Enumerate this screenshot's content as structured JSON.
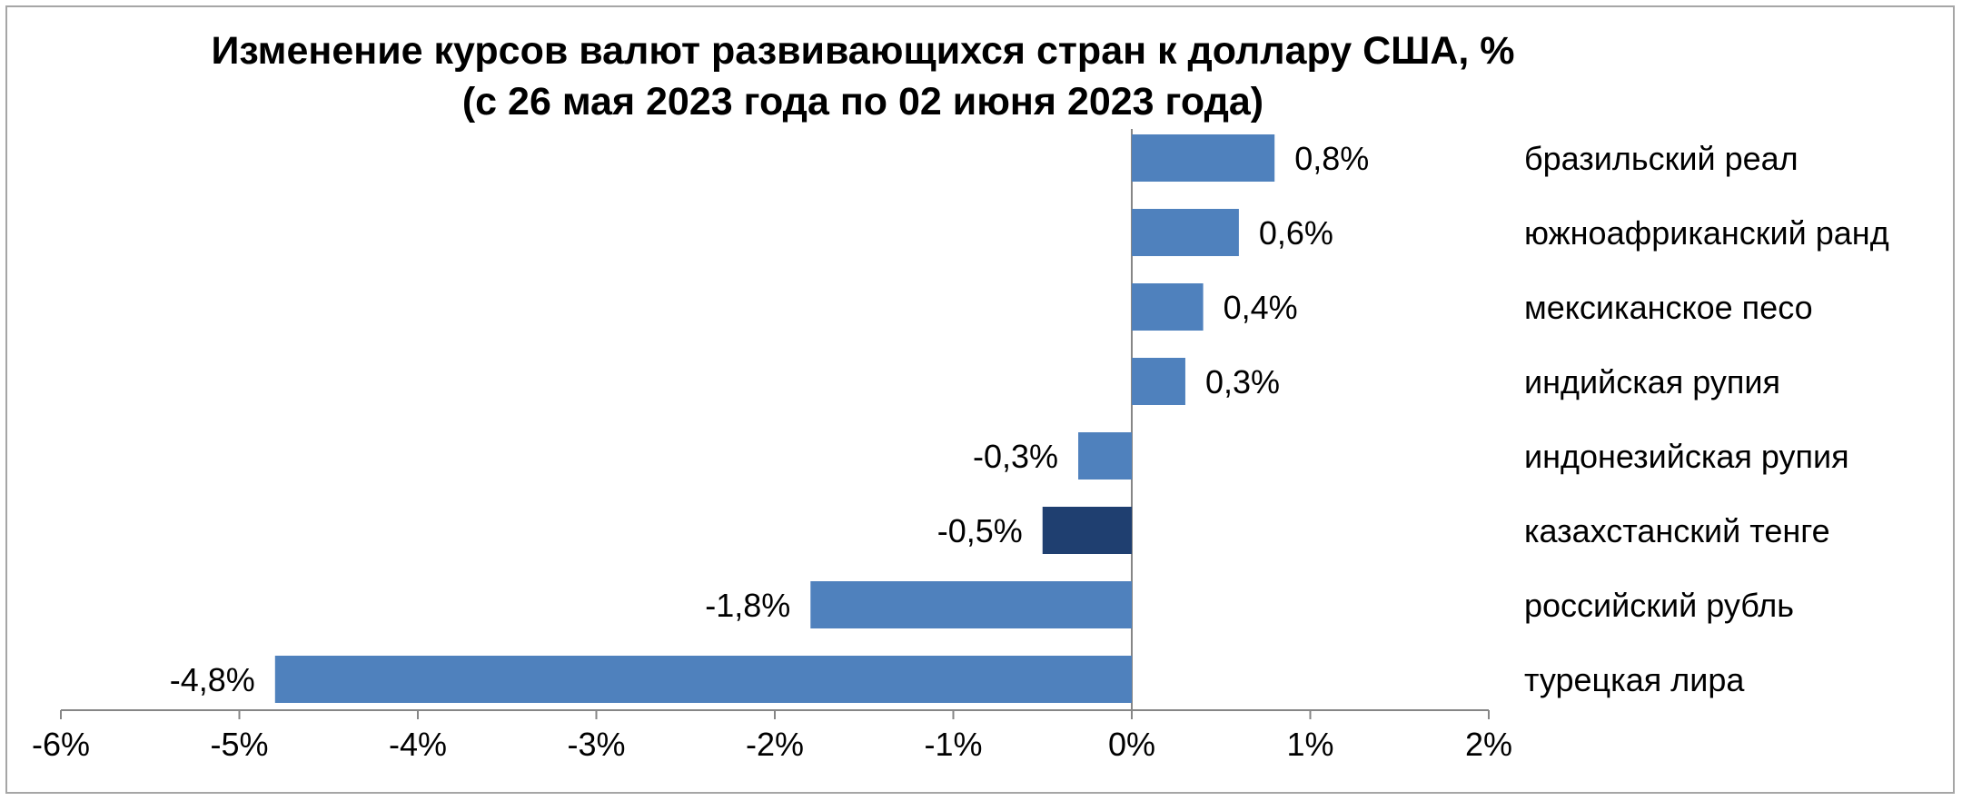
{
  "chart_data": {
    "type": "bar",
    "orientation": "horizontal",
    "title": "Изменение курсов валют развивающихся стран к доллару США, %",
    "subtitle": "(с 26 мая 2023 года по 02 июня 2023 года)",
    "categories": [
      "бразильский реал",
      "южноафриканский ранд",
      "мексиканское песо",
      "индийская рупия",
      "индонезийская рупия",
      "казахстанский тенге",
      "российский рубль",
      "турецкая лира"
    ],
    "values": [
      0.8,
      0.6,
      0.4,
      0.3,
      -0.3,
      -0.5,
      -1.8,
      -4.8
    ],
    "value_labels": [
      "0,8%",
      "0,6%",
      "0,4%",
      "0,3%",
      "-0,3%",
      "-0,5%",
      "-1,8%",
      "-4,8%"
    ],
    "highlight_category": "казахстанский тенге",
    "xlim": [
      -6,
      2
    ],
    "x_ticks": [
      "-6%",
      "-5%",
      "-4%",
      "-3%",
      "-2%",
      "-1%",
      "0%",
      "1%",
      "2%"
    ],
    "bar_color": "#4f81bd",
    "highlight_color": "#1f3f70",
    "grid": false,
    "legend": "none"
  }
}
